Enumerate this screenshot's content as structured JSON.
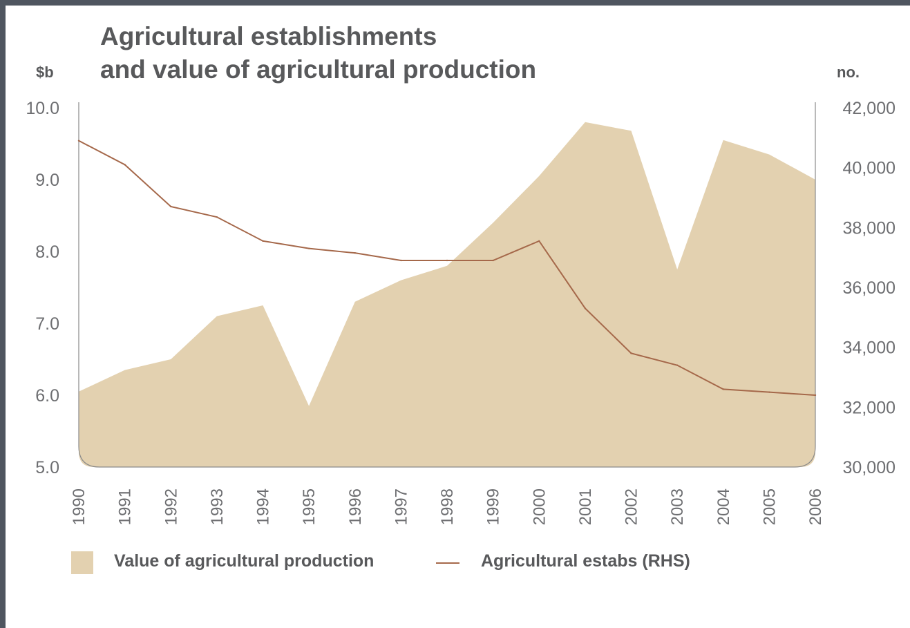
{
  "chart_data": {
    "type": "area",
    "title": "Agricultural establishments and value of agricultural production",
    "title_lines": [
      "Agricultural establishments",
      "and value of agricultural production"
    ],
    "left_axis_unit": "$b",
    "right_axis_unit": "no.",
    "x": [
      "1990",
      "1991",
      "1992",
      "1993",
      "1994",
      "1995",
      "1996",
      "1997",
      "1998",
      "1999",
      "2000",
      "2001",
      "2002",
      "2003",
      "2004",
      "2005",
      "2006"
    ],
    "y_left": {
      "min": 5.0,
      "max": 10.0,
      "ticks": [
        10.0,
        9.0,
        8.0,
        7.0,
        6.0,
        5.0
      ],
      "tick_labels": [
        "10.0",
        "9.0",
        "8.0",
        "7.0",
        "6.0",
        "5.0"
      ]
    },
    "y_right": {
      "min": 30000,
      "max": 42000,
      "ticks": [
        42000,
        40000,
        38000,
        36000,
        34000,
        32000,
        30000
      ],
      "tick_labels": [
        "42,000",
        "40,000",
        "38,000",
        "36,000",
        "34,000",
        "32,000",
        "30,000"
      ]
    },
    "series": [
      {
        "name": "Value of agricultural production",
        "type": "area",
        "axis": "left",
        "color": "#e3d1b0",
        "values": [
          6.05,
          6.35,
          6.5,
          7.1,
          7.25,
          5.85,
          7.3,
          7.6,
          7.8,
          8.4,
          9.05,
          9.8,
          9.68,
          7.75,
          9.55,
          9.35,
          9.0
        ]
      },
      {
        "name": "Agricultural estabs (RHS)",
        "type": "line",
        "axis": "right",
        "color": "#a5684a",
        "values": [
          40900,
          40100,
          38700,
          38350,
          37550,
          37300,
          37150,
          36900,
          36900,
          36900,
          37550,
          35300,
          33800,
          33400,
          32600,
          32500,
          32400
        ]
      }
    ],
    "legend": {
      "position": "bottom-left",
      "items": [
        "Value of agricultural production",
        "Agricultural estabs (RHS)"
      ]
    },
    "grid": false
  }
}
